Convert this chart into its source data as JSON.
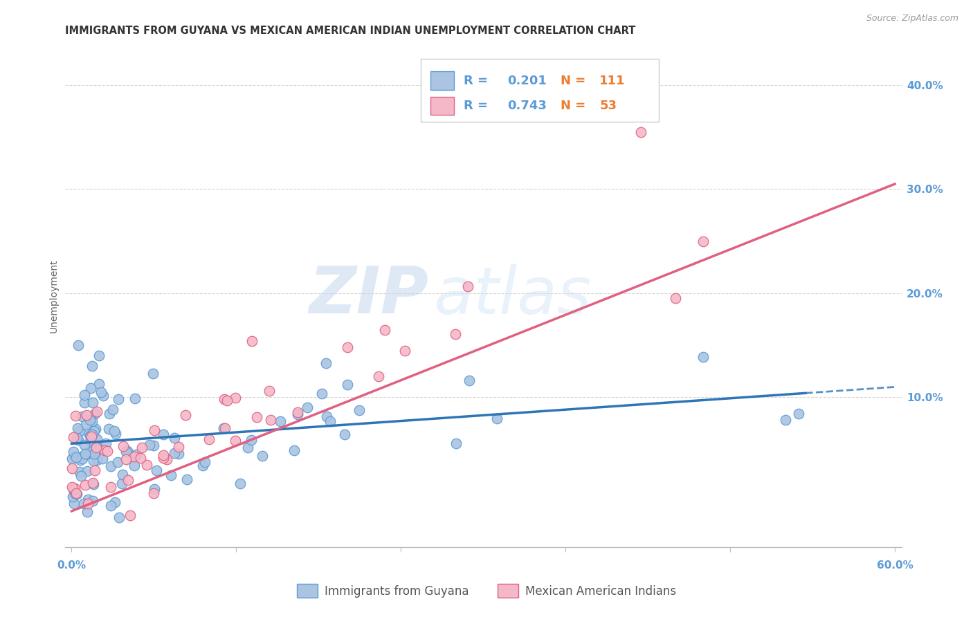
{
  "title": "IMMIGRANTS FROM GUYANA VS MEXICAN AMERICAN INDIAN UNEMPLOYMENT CORRELATION CHART",
  "source": "Source: ZipAtlas.com",
  "ylabel": "Unemployment",
  "watermark_zip": "ZIP",
  "watermark_atlas": "atlas",
  "series": [
    {
      "name": "Immigrants from Guyana",
      "R": 0.201,
      "N": 111,
      "color": "#aac4e2",
      "edge_color": "#5b9bd5",
      "trend_color": "#2e75b6",
      "trend_style": "solid"
    },
    {
      "name": "Mexican American Indians",
      "R": 0.743,
      "N": 53,
      "color": "#f4b8c8",
      "edge_color": "#e06080",
      "trend_color": "#e06080",
      "trend_style": "solid"
    }
  ],
  "ytick_values": [
    0.1,
    0.2,
    0.3,
    0.4
  ],
  "xlim": [
    0.0,
    0.6
  ],
  "ylim": [
    -0.045,
    0.44
  ],
  "background_color": "#ffffff",
  "grid_color": "#d5d5d5",
  "axis_label_color": "#5b9bd5",
  "legend_R_color": "#5b9bd5",
  "legend_N_color": "#ed7d31",
  "title_fontsize": 10.5,
  "tick_fontsize": 11
}
